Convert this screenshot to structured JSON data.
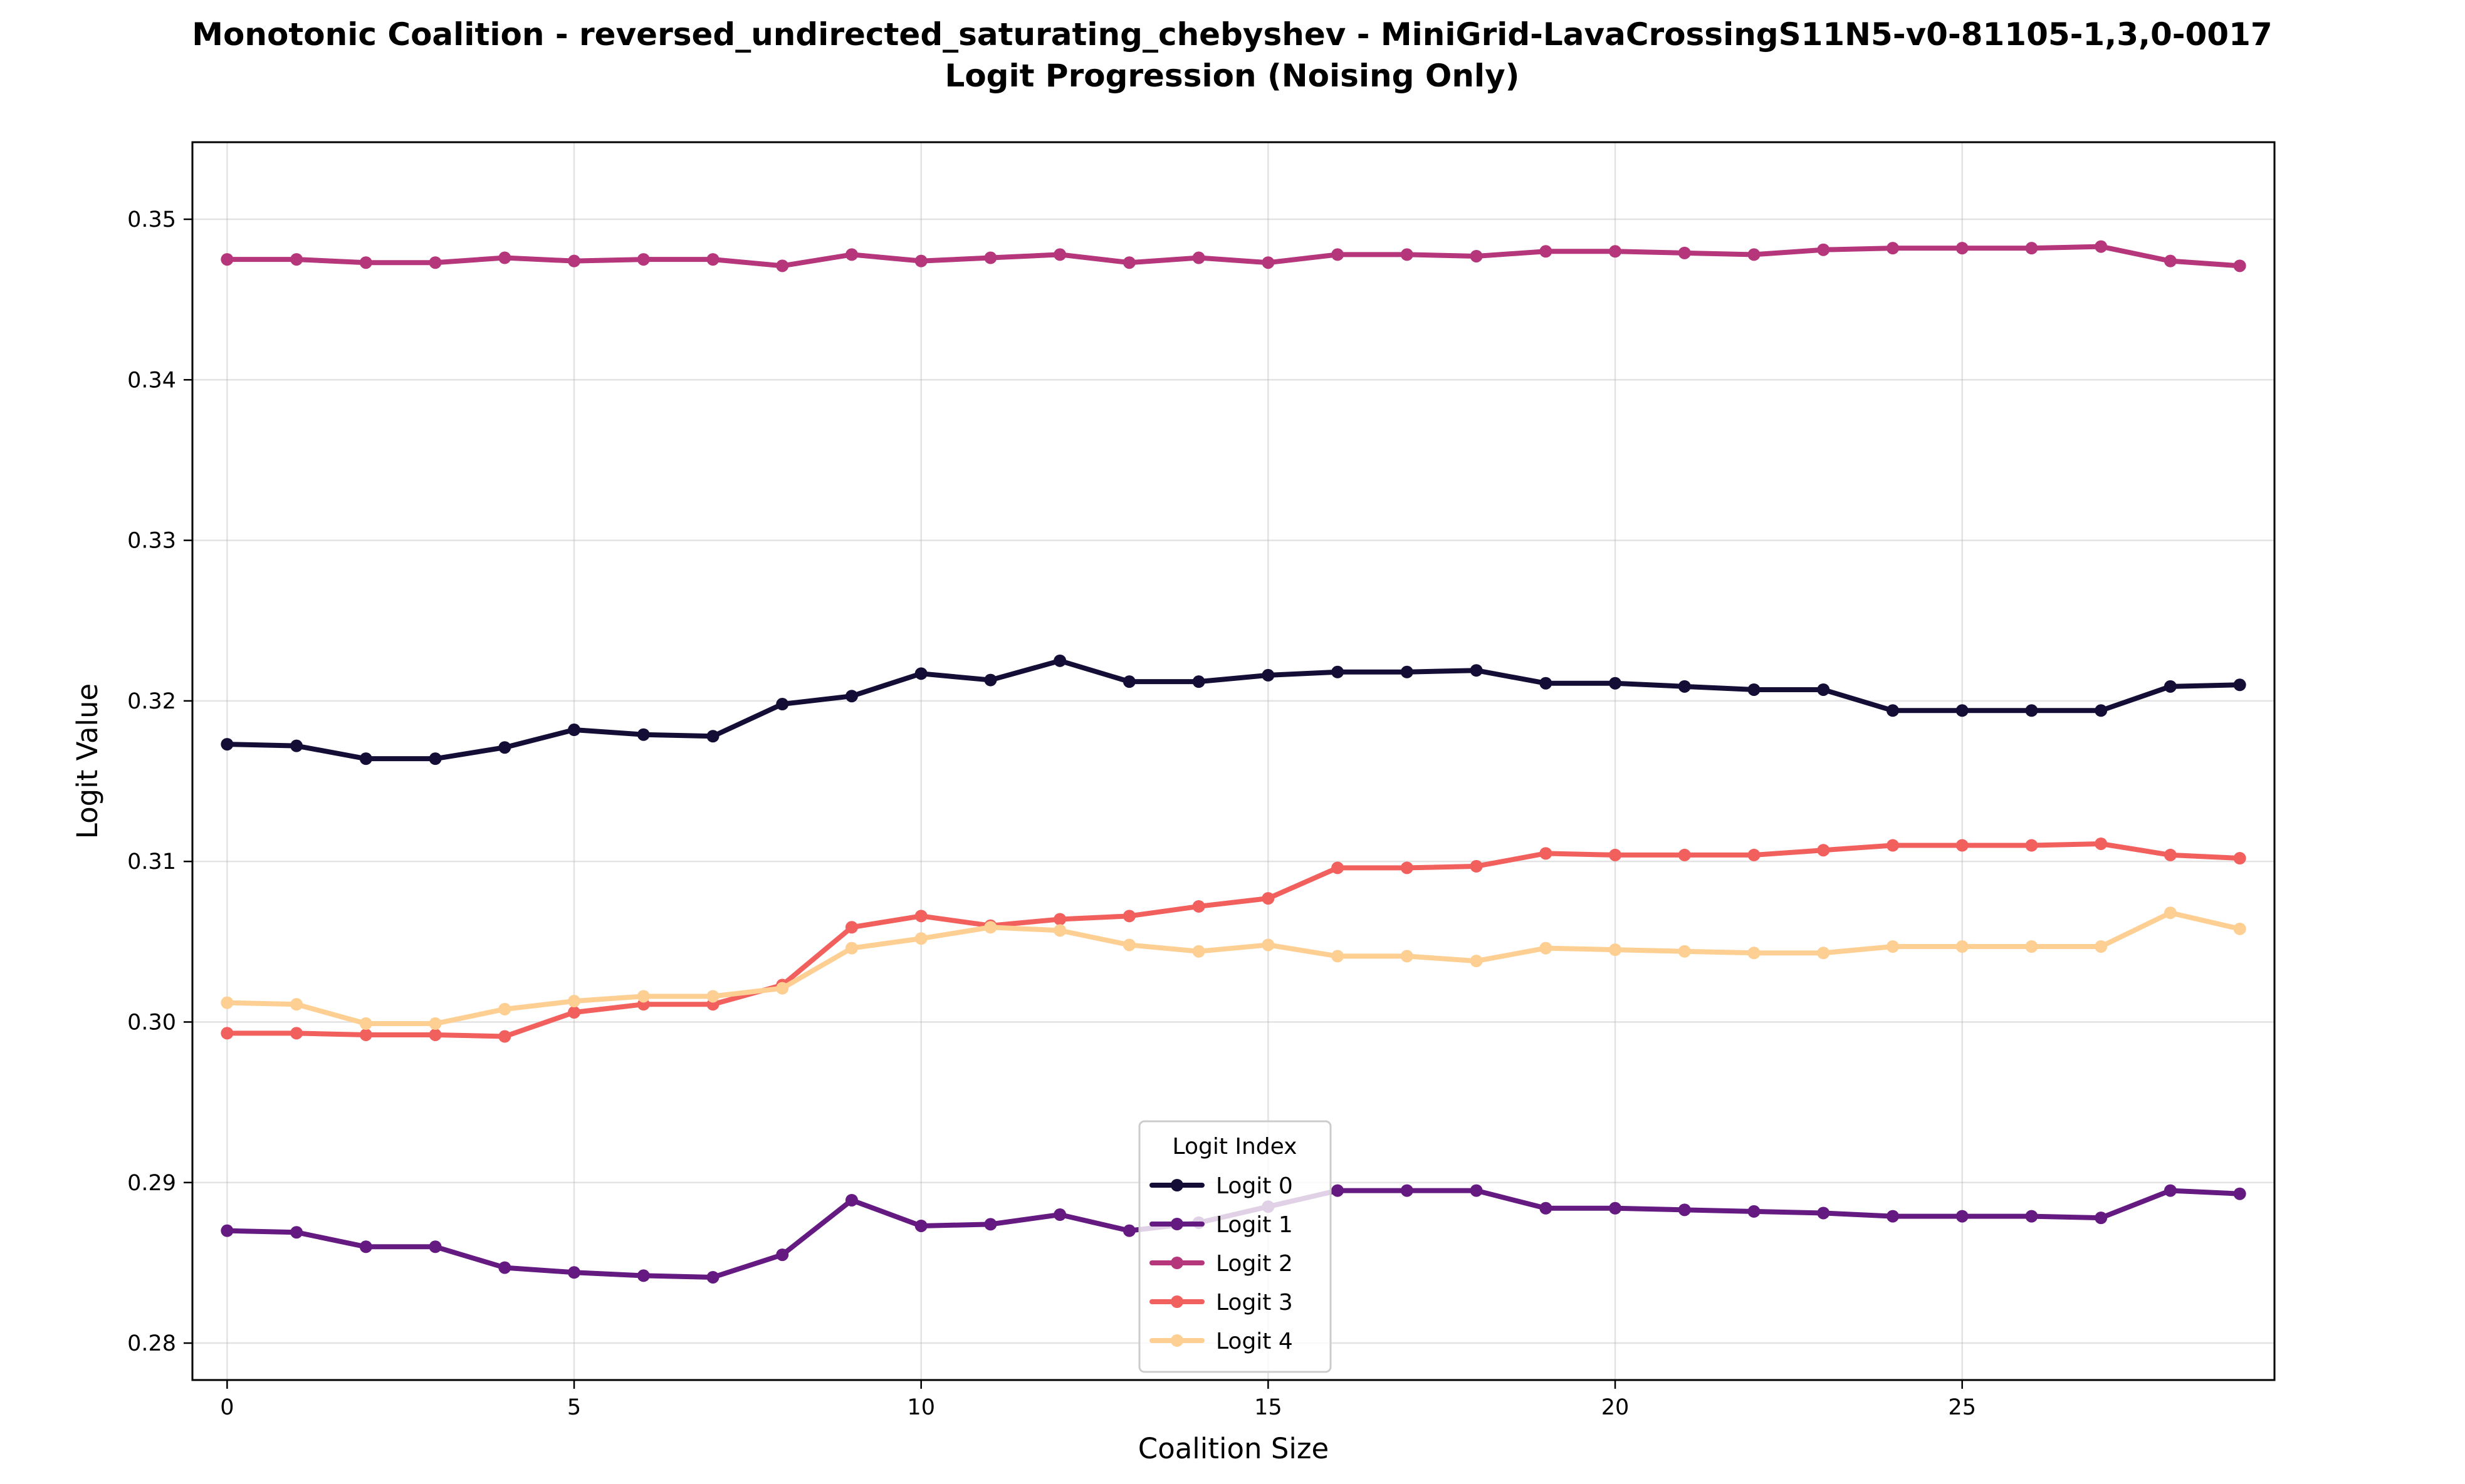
{
  "chart_data": {
    "type": "line",
    "title": "Monotonic Coalition - reversed_undirected_saturating_chebyshev - MiniGrid-LavaCrossingS11N5-v0-81105-1,3,0-0017",
    "subtitle": "Logit Progression (Noising Only)",
    "xlabel": "Coalition Size",
    "ylabel": "Logit Value",
    "xlim": [
      -0.5,
      29.5
    ],
    "ylim": [
      0.2777,
      0.3548
    ],
    "xticks": [
      0,
      5,
      10,
      15,
      20,
      25
    ],
    "yticks": [
      0.28,
      0.29,
      0.3,
      0.31,
      0.32,
      0.33,
      0.34,
      0.35
    ],
    "ytick_labels": [
      "0.28",
      "0.29",
      "0.30",
      "0.31",
      "0.32",
      "0.33",
      "0.34",
      "0.35"
    ],
    "grid": true,
    "legend": {
      "title": "Logit Index",
      "placement": "lower-center"
    },
    "x": [
      0,
      1,
      2,
      3,
      4,
      5,
      6,
      7,
      8,
      9,
      10,
      11,
      12,
      13,
      14,
      15,
      16,
      17,
      18,
      19,
      20,
      21,
      22,
      23,
      24,
      25,
      26,
      27,
      28,
      29
    ],
    "series": [
      {
        "name": "Logit 0",
        "color": "#140e36",
        "values": [
          0.3173,
          0.3172,
          0.3164,
          0.3164,
          0.3171,
          0.3182,
          0.3179,
          0.3178,
          0.3198,
          0.3203,
          0.3217,
          0.3213,
          0.3225,
          0.3212,
          0.3212,
          0.3216,
          0.3218,
          0.3218,
          0.3219,
          0.3211,
          0.3211,
          0.3209,
          0.3207,
          0.3207,
          0.3194,
          0.3194,
          0.3194,
          0.3194,
          0.3209,
          0.321
        ]
      },
      {
        "name": "Logit 1",
        "color": "#641a80",
        "values": [
          0.287,
          0.2869,
          0.286,
          0.286,
          0.2847,
          0.2844,
          0.2842,
          0.2841,
          0.2855,
          0.2889,
          0.2873,
          0.2874,
          0.288,
          0.287,
          0.2875,
          0.2885,
          0.2895,
          0.2895,
          0.2895,
          0.2884,
          0.2884,
          0.2883,
          0.2882,
          0.2881,
          0.2879,
          0.2879,
          0.2879,
          0.2878,
          0.2895,
          0.2893
        ]
      },
      {
        "name": "Logit 2",
        "color": "#b5367a",
        "values": [
          0.3475,
          0.3475,
          0.3473,
          0.3473,
          0.3476,
          0.3474,
          0.3475,
          0.3475,
          0.3471,
          0.3478,
          0.3474,
          0.3476,
          0.3478,
          0.3473,
          0.3476,
          0.3473,
          0.3478,
          0.3478,
          0.3477,
          0.348,
          0.348,
          0.3479,
          0.3478,
          0.3481,
          0.3482,
          0.3482,
          0.3482,
          0.3483,
          0.3474,
          0.3471
        ]
      },
      {
        "name": "Logit 3",
        "color": "#f1605d",
        "values": [
          0.2993,
          0.2993,
          0.2992,
          0.2992,
          0.2991,
          0.3006,
          0.3011,
          0.3011,
          0.3023,
          0.3059,
          0.3066,
          0.306,
          0.3064,
          0.3066,
          0.3072,
          0.3077,
          0.3096,
          0.3096,
          0.3097,
          0.3105,
          0.3104,
          0.3104,
          0.3104,
          0.3107,
          0.311,
          0.311,
          0.311,
          0.3111,
          0.3104,
          0.3102
        ]
      },
      {
        "name": "Logit 4",
        "color": "#fecf92",
        "values": [
          0.3012,
          0.3011,
          0.2999,
          0.2999,
          0.3008,
          0.3013,
          0.3016,
          0.3016,
          0.3021,
          0.3046,
          0.3052,
          0.3059,
          0.3057,
          0.3048,
          0.3044,
          0.3048,
          0.3041,
          0.3041,
          0.3038,
          0.3046,
          0.3045,
          0.3044,
          0.3043,
          0.3043,
          0.3047,
          0.3047,
          0.3047,
          0.3047,
          0.3068,
          0.3058
        ]
      }
    ]
  }
}
